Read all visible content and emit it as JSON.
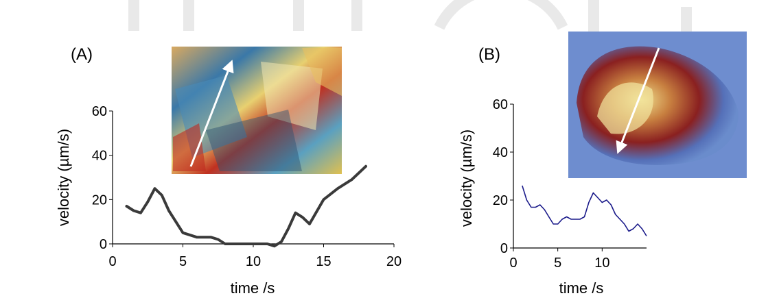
{
  "panels": [
    {
      "label": "(A)"
    },
    {
      "label": "(B)"
    }
  ],
  "colors": {
    "line_a": "#3a3a3a",
    "line_b": "#1a1a8a",
    "axis": "#000000",
    "photo_arrow": "#ffffff",
    "watermark": "#e6e6e6"
  },
  "chart_data": [
    {
      "type": "line",
      "panel": "(A)",
      "xlabel": "time /s",
      "ylabel": "velocity (µm/s)",
      "xlim": [
        0,
        20
      ],
      "ylim": [
        0,
        60
      ],
      "xticks": [
        0,
        5,
        10,
        15,
        20
      ],
      "yticks": [
        0,
        20,
        40,
        60
      ],
      "grid": false,
      "series": [
        {
          "x": [
            1,
            1.5,
            2,
            2.5,
            3,
            3.5,
            4,
            5,
            6,
            7,
            7.5,
            8,
            9,
            10,
            11,
            11.5,
            12,
            12.5,
            13,
            13.5,
            14,
            15,
            16,
            17,
            18
          ],
          "y": [
            17,
            15,
            14,
            19,
            25,
            22,
            15,
            5,
            3,
            3,
            2,
            0,
            0,
            0,
            0,
            -1,
            1,
            7,
            14,
            12,
            9,
            20,
            25,
            29,
            35
          ]
        }
      ]
    },
    {
      "type": "line",
      "panel": "(B)",
      "xlabel": "time /s",
      "ylabel": "velocity (µm/s)",
      "xlim": [
        0,
        15
      ],
      "ylim": [
        0,
        60
      ],
      "xticks": [
        0,
        5,
        10
      ],
      "yticks": [
        0,
        20,
        40,
        60
      ],
      "grid": false,
      "series": [
        {
          "x": [
            1,
            1.5,
            2,
            2.5,
            3,
            3.5,
            4,
            4.5,
            5,
            5.5,
            6,
            6.5,
            7,
            7.5,
            8,
            8.5,
            9,
            9.5,
            10,
            10.5,
            11,
            11.5,
            12,
            12.5,
            13,
            13.5,
            14,
            14.5,
            15
          ],
          "y": [
            26,
            20,
            17,
            17,
            18,
            16,
            13,
            10,
            10,
            12,
            13,
            12,
            12,
            12,
            13,
            19,
            23,
            21,
            19,
            20,
            18,
            14,
            12,
            10,
            7,
            8,
            10,
            8,
            5
          ]
        }
      ]
    }
  ]
}
